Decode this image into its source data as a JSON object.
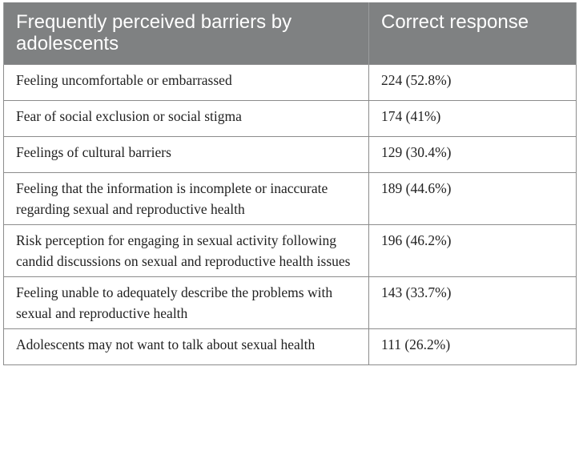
{
  "table": {
    "headers": [
      "Frequently perceived barriers by adolescents",
      "Correct response"
    ],
    "rows": [
      [
        "Feeling uncomfortable or embarrassed",
        "224 (52.8%)"
      ],
      [
        "Fear of social exclusion or social stigma",
        "174 (41%)"
      ],
      [
        "Feelings of cultural barriers",
        "129 (30.4%)"
      ],
      [
        "Feeling that the information is incomplete or inaccurate regarding sexual and reproductive health",
        "189 (44.6%)"
      ],
      [
        "Risk perception for engaging in sexual activity following candid discussions on sexual and reproductive health issues",
        "196 (46.2%)"
      ],
      [
        "Feeling unable to adequately describe the problems with sexual and reproductive health",
        "143 (33.7%)"
      ],
      [
        "Adolescents may not want to talk about sexual health",
        "111 (26.2%)"
      ]
    ],
    "colors": {
      "header_bg": "#7f8182",
      "header_text": "#ffffff",
      "border": "#8c8c8c",
      "body_text": "#222222"
    }
  }
}
